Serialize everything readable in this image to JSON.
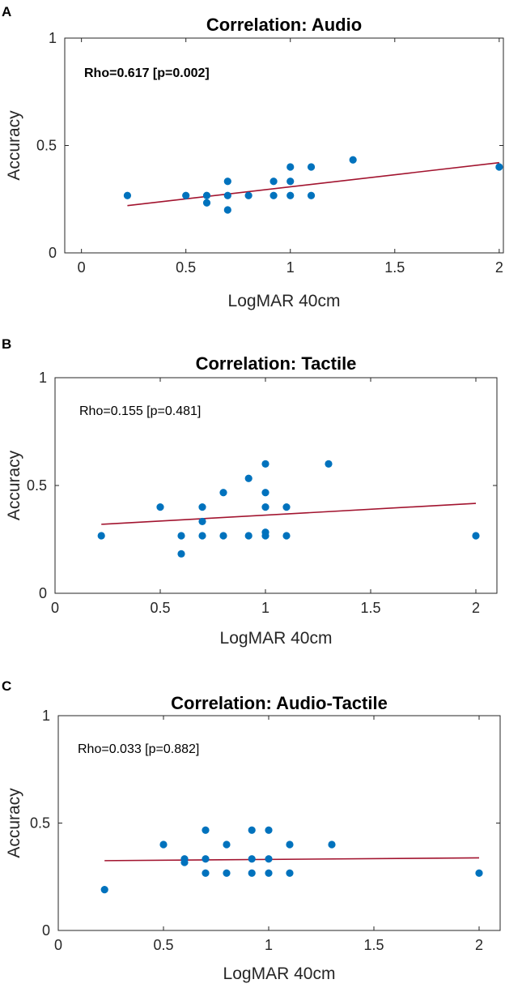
{
  "chart_data": [
    {
      "panel": "A",
      "type": "scatter",
      "title": "Correlation: Audio",
      "xlabel": "LogMAR 40cm",
      "ylabel": "Accuracy",
      "xlim": [
        -0.08,
        2.02
      ],
      "ylim": [
        0,
        1
      ],
      "xticks": [
        0,
        0.5,
        1,
        1.5,
        2
      ],
      "xtick_labels": [
        "0",
        "0.5",
        "1",
        "1.5",
        "2"
      ],
      "yticks": [
        0,
        0.5,
        1
      ],
      "ytick_labels": [
        "0",
        "0.5",
        "1"
      ],
      "annotation": "Rho=0.617 [p=0.002]",
      "annotation_bold": true,
      "points": [
        [
          0.22,
          0.267
        ],
        [
          0.5,
          0.267
        ],
        [
          0.6,
          0.267
        ],
        [
          0.6,
          0.233
        ],
        [
          0.7,
          0.333
        ],
        [
          0.7,
          0.267
        ],
        [
          0.7,
          0.2
        ],
        [
          0.8,
          0.267
        ],
        [
          0.92,
          0.333
        ],
        [
          0.92,
          0.267
        ],
        [
          1.0,
          0.4
        ],
        [
          1.0,
          0.333
        ],
        [
          1.0,
          0.267
        ],
        [
          1.1,
          0.4
        ],
        [
          1.1,
          0.267
        ],
        [
          1.3,
          0.433
        ],
        [
          2.0,
          0.4
        ]
      ],
      "fit_line": [
        [
          0.22,
          0.22
        ],
        [
          2.0,
          0.42
        ]
      ],
      "marker_color": "#0072BD",
      "line_color": "#A2142F"
    },
    {
      "panel": "B",
      "type": "scatter",
      "title": "Correlation: Tactile",
      "xlabel": "LogMAR 40cm",
      "ylabel": "Accuracy",
      "xlim": [
        0,
        2.1
      ],
      "ylim": [
        0,
        1
      ],
      "xticks": [
        0,
        0.5,
        1,
        1.5,
        2
      ],
      "xtick_labels": [
        "0",
        "0.5",
        "1",
        "1.5",
        "2"
      ],
      "yticks": [
        0,
        0.5,
        1
      ],
      "ytick_labels": [
        "0",
        "0.5",
        "1"
      ],
      "annotation": "Rho=0.155 [p=0.481]",
      "annotation_bold": false,
      "points": [
        [
          0.22,
          0.267
        ],
        [
          0.5,
          0.4
        ],
        [
          0.6,
          0.267
        ],
        [
          0.6,
          0.183
        ],
        [
          0.7,
          0.4
        ],
        [
          0.7,
          0.333
        ],
        [
          0.7,
          0.267
        ],
        [
          0.8,
          0.467
        ],
        [
          0.8,
          0.267
        ],
        [
          0.92,
          0.533
        ],
        [
          0.92,
          0.267
        ],
        [
          1.0,
          0.6
        ],
        [
          1.0,
          0.467
        ],
        [
          1.0,
          0.4
        ],
        [
          1.0,
          0.283
        ],
        [
          1.0,
          0.267
        ],
        [
          1.1,
          0.4
        ],
        [
          1.1,
          0.267
        ],
        [
          1.3,
          0.6
        ],
        [
          2.0,
          0.267
        ]
      ],
      "fit_line": [
        [
          0.22,
          0.32
        ],
        [
          2.0,
          0.417
        ]
      ],
      "marker_color": "#0072BD",
      "line_color": "#A2142F"
    },
    {
      "panel": "C",
      "type": "scatter",
      "title": "Correlation: Audio-Tactile",
      "xlabel": "LogMAR 40cm",
      "ylabel": "Accuracy",
      "xlim": [
        0,
        2.1
      ],
      "ylim": [
        0,
        1
      ],
      "xticks": [
        0,
        0.5,
        1,
        1.5,
        2
      ],
      "xtick_labels": [
        "0",
        "0.5",
        "1",
        "1.5",
        "2"
      ],
      "yticks": [
        0,
        0.5,
        1
      ],
      "ytick_labels": [
        "0",
        "0.5",
        "1"
      ],
      "annotation": "Rho=0.033 [p=0.882]",
      "annotation_bold": false,
      "points": [
        [
          0.22,
          0.19
        ],
        [
          0.5,
          0.4
        ],
        [
          0.6,
          0.333
        ],
        [
          0.6,
          0.317
        ],
        [
          0.7,
          0.467
        ],
        [
          0.7,
          0.333
        ],
        [
          0.7,
          0.267
        ],
        [
          0.8,
          0.4
        ],
        [
          0.8,
          0.267
        ],
        [
          0.92,
          0.467
        ],
        [
          0.92,
          0.333
        ],
        [
          0.92,
          0.267
        ],
        [
          1.0,
          0.467
        ],
        [
          1.0,
          0.333
        ],
        [
          1.0,
          0.267
        ],
        [
          1.1,
          0.4
        ],
        [
          1.1,
          0.267
        ],
        [
          1.3,
          0.4
        ],
        [
          2.0,
          0.267
        ]
      ],
      "fit_line": [
        [
          0.22,
          0.325
        ],
        [
          2.0,
          0.338
        ]
      ],
      "marker_color": "#0072BD",
      "line_color": "#A2142F"
    }
  ]
}
